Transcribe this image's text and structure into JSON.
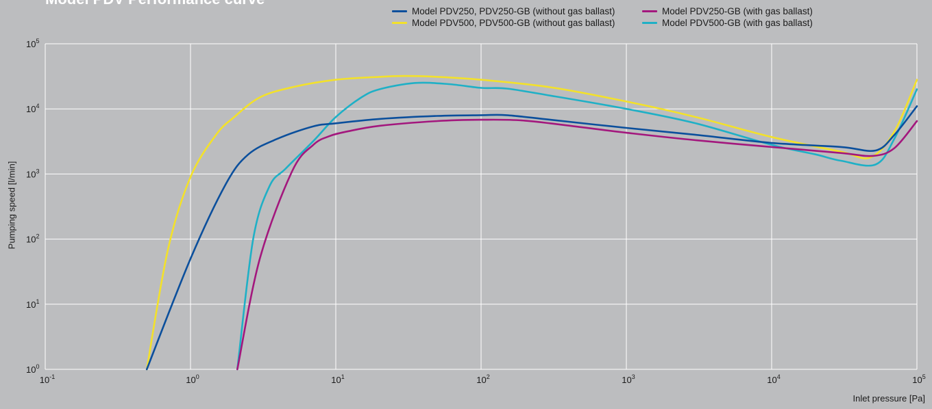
{
  "chart_data": {
    "type": "line",
    "title": "Model PDV Performance curve",
    "xlabel": "Inlet pressure [Pa]",
    "ylabel": "Pumping speed [l/min]",
    "x_scale": "log",
    "y_scale": "log",
    "xlim": [
      0.1,
      100000
    ],
    "ylim": [
      1,
      100000
    ],
    "grid": true,
    "legend_position": "top-right",
    "x_ticks": [
      {
        "base": "10",
        "exp": "-1"
      },
      {
        "base": "10",
        "exp": "0"
      },
      {
        "base": "10",
        "exp": "1"
      },
      {
        "base": "10",
        "exp": "2"
      },
      {
        "base": "10",
        "exp": "3"
      },
      {
        "base": "10",
        "exp": "4"
      },
      {
        "base": "10",
        "exp": "5"
      }
    ],
    "y_ticks": [
      {
        "base": "10",
        "exp": "0"
      },
      {
        "base": "10",
        "exp": "1"
      },
      {
        "base": "10",
        "exp": "2"
      },
      {
        "base": "10",
        "exp": "3"
      },
      {
        "base": "10",
        "exp": "4"
      },
      {
        "base": "10",
        "exp": "5"
      }
    ],
    "series": [
      {
        "name": "Model PDV250, PDV250-GB (without gas ballast)",
        "color": "#0b4f9c",
        "points": [
          [
            0.5,
            1
          ],
          [
            1.0,
            50
          ],
          [
            1.75,
            700
          ],
          [
            2.5,
            2000
          ],
          [
            4,
            3500
          ],
          [
            7,
            5400
          ],
          [
            10,
            6000
          ],
          [
            20,
            7000
          ],
          [
            50,
            7800
          ],
          [
            100,
            8000
          ],
          [
            150,
            8000
          ],
          [
            300,
            6800
          ],
          [
            1000,
            5100
          ],
          [
            3000,
            4000
          ],
          [
            10000,
            3000
          ],
          [
            30000,
            2600
          ],
          [
            52000,
            2300
          ],
          [
            70000,
            4000
          ],
          [
            100000,
            11000
          ]
        ]
      },
      {
        "name": "Model PDV500, PDV500-GB (without gas ballast)",
        "color": "#f3e12a",
        "points": [
          [
            0.5,
            1
          ],
          [
            0.7,
            70
          ],
          [
            1.0,
            900
          ],
          [
            1.5,
            4000
          ],
          [
            2,
            7500
          ],
          [
            3,
            15000
          ],
          [
            5,
            21500
          ],
          [
            10,
            28000
          ],
          [
            20,
            31000
          ],
          [
            30,
            32000
          ],
          [
            50,
            31000
          ],
          [
            100,
            28000
          ],
          [
            300,
            21500
          ],
          [
            1000,
            13000
          ],
          [
            3000,
            7500
          ],
          [
            10000,
            3700
          ],
          [
            30000,
            2200
          ],
          [
            48000,
            1800
          ],
          [
            70000,
            4500
          ],
          [
            100000,
            28000
          ]
        ]
      },
      {
        "name": "Model PDV250-GB (with gas ballast)",
        "color": "#a3177d",
        "points": [
          [
            2.1,
            1
          ],
          [
            3,
            50
          ],
          [
            5,
            1100
          ],
          [
            7,
            2800
          ],
          [
            9,
            3800
          ],
          [
            12,
            4500
          ],
          [
            20,
            5500
          ],
          [
            50,
            6500
          ],
          [
            100,
            6800
          ],
          [
            200,
            6600
          ],
          [
            500,
            5200
          ],
          [
            1000,
            4300
          ],
          [
            3000,
            3300
          ],
          [
            10000,
            2600
          ],
          [
            30000,
            2100
          ],
          [
            50000,
            1900
          ],
          [
            70000,
            2500
          ],
          [
            100000,
            6500
          ]
        ]
      },
      {
        "name": "Model PDV500-GB (with gas ballast)",
        "color": "#1fb0c6",
        "points": [
          [
            2.1,
            1
          ],
          [
            2.7,
            100
          ],
          [
            3.5,
            650
          ],
          [
            4.5,
            1200
          ],
          [
            7,
            3200
          ],
          [
            10,
            7500
          ],
          [
            15,
            15000
          ],
          [
            20,
            20000
          ],
          [
            35,
            25000
          ],
          [
            60,
            24000
          ],
          [
            100,
            21000
          ],
          [
            150,
            20500
          ],
          [
            300,
            16000
          ],
          [
            1000,
            10000
          ],
          [
            3000,
            6000
          ],
          [
            10000,
            2800
          ],
          [
            20000,
            2000
          ],
          [
            30000,
            1600
          ],
          [
            52000,
            1400
          ],
          [
            70000,
            3500
          ],
          [
            100000,
            20000
          ]
        ]
      }
    ]
  }
}
